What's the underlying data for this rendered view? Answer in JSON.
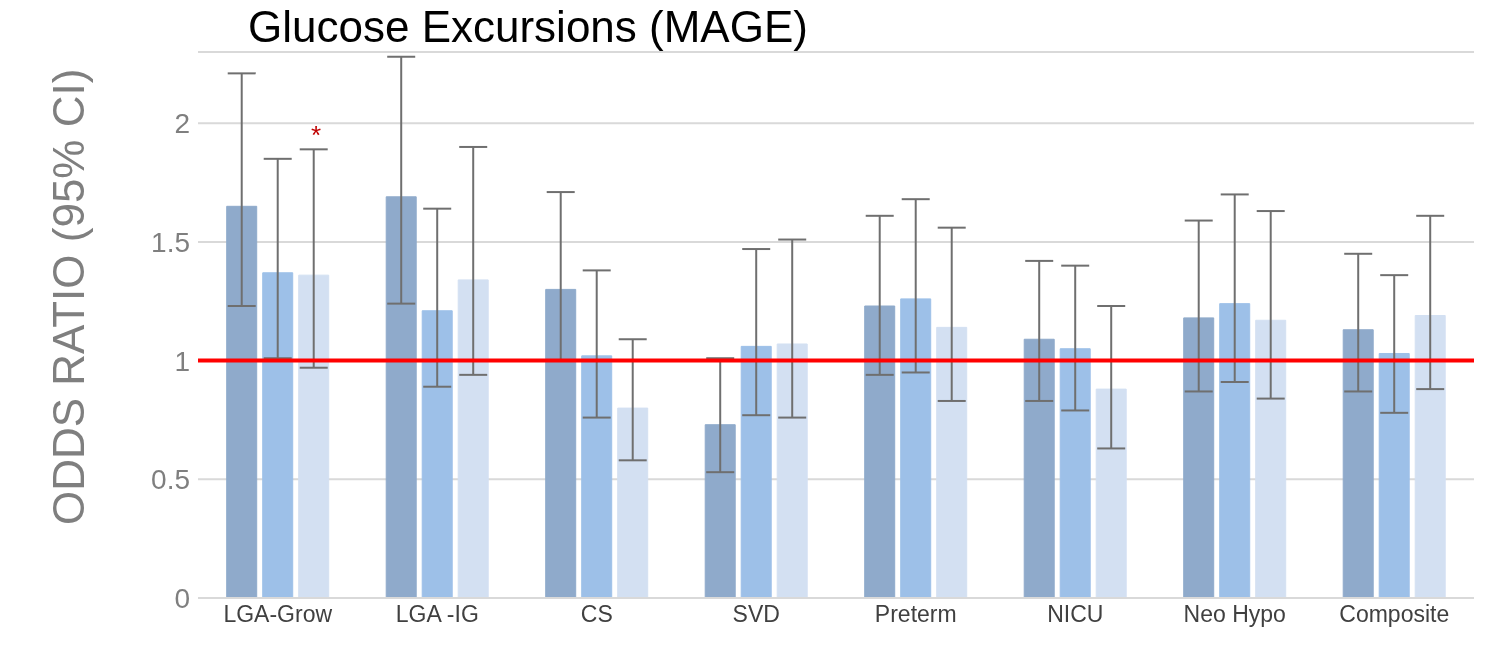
{
  "chart_data": {
    "type": "bar",
    "title": "Glucose Excursions (MAGE)",
    "ylabel": "ODDS RATIO (95% CI)",
    "categories": [
      "LGA-Grow",
      "LGA -IG",
      "CS",
      "SVD",
      "Preterm",
      "NICU",
      "Neo Hypo",
      "Composite"
    ],
    "series": [
      {
        "color": "#8faacb",
        "values": [
          1.65,
          1.69,
          1.3,
          0.73,
          1.23,
          1.09,
          1.18,
          1.13
        ],
        "errors": [
          [
            1.23,
            2.21
          ],
          [
            1.24,
            2.28
          ],
          [
            1.0,
            1.71
          ],
          [
            0.53,
            1.01
          ],
          [
            0.94,
            1.61
          ],
          [
            0.83,
            1.42
          ],
          [
            0.87,
            1.59
          ],
          [
            0.87,
            1.45
          ]
        ]
      },
      {
        "color": "#9dc0e8",
        "values": [
          1.37,
          1.21,
          1.02,
          1.06,
          1.26,
          1.05,
          1.24,
          1.03
        ],
        "errors": [
          [
            1.01,
            1.85
          ],
          [
            0.89,
            1.64
          ],
          [
            0.76,
            1.38
          ],
          [
            0.77,
            1.47
          ],
          [
            0.95,
            1.68
          ],
          [
            0.79,
            1.4
          ],
          [
            0.91,
            1.7
          ],
          [
            0.78,
            1.36
          ]
        ]
      },
      {
        "color": "#d3e0f2",
        "values": [
          1.36,
          1.34,
          0.8,
          1.07,
          1.14,
          0.88,
          1.17,
          1.19
        ],
        "errors": [
          [
            0.97,
            1.89
          ],
          [
            0.94,
            1.9
          ],
          [
            0.58,
            1.09
          ],
          [
            0.76,
            1.51
          ],
          [
            0.83,
            1.56
          ],
          [
            0.63,
            1.23
          ],
          [
            0.84,
            1.63
          ],
          [
            0.88,
            1.61
          ]
        ]
      }
    ],
    "ylim": [
      0,
      2.3
    ],
    "yticks": [
      0,
      0.5,
      1,
      1.5,
      2
    ],
    "grid": "y",
    "legend": false,
    "ref_lines": [
      {
        "axis": "y",
        "value": 1,
        "color": "#ff0000"
      }
    ],
    "annotations": [
      "*"
    ]
  }
}
